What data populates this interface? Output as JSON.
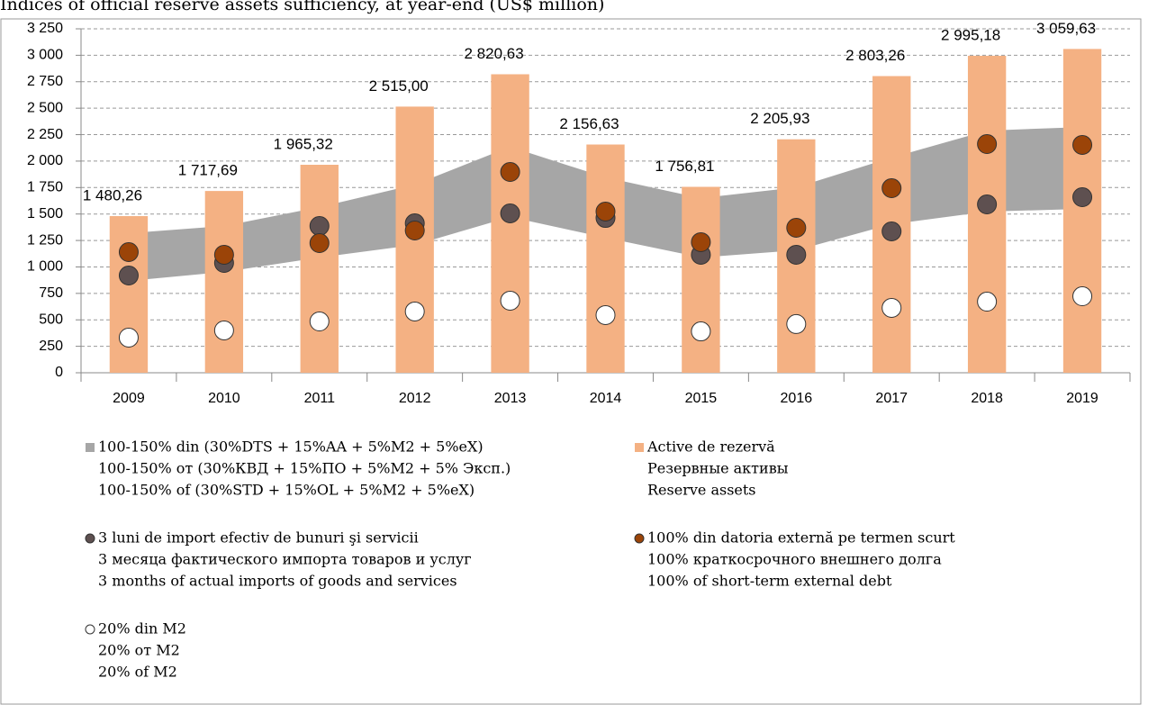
{
  "chart_data": {
    "type": "combo",
    "title": "Indices of official reserve assets sufficiency, at year-end (US$ million)",
    "categories": [
      "2009",
      "2010",
      "2011",
      "2012",
      "2013",
      "2014",
      "2015",
      "2016",
      "2017",
      "2018",
      "2019"
    ],
    "ylim": [
      0,
      3250
    ],
    "yticks": [
      0,
      250,
      500,
      750,
      {
        "value": 1000,
        "label": "1 000"
      },
      {
        "value": 1250,
        "label": "1 250"
      },
      {
        "value": 1500,
        "label": "1 500"
      },
      {
        "value": 1750,
        "label": "1 750"
      },
      {
        "value": 2000,
        "label": "2 000"
      },
      {
        "value": 2250,
        "label": "2 250"
      },
      {
        "value": 2500,
        "label": "2 500"
      },
      {
        "value": 2750,
        "label": "2 750"
      },
      {
        "value": 3000,
        "label": "3 000"
      },
      {
        "value": 3250,
        "label": "3 250"
      }
    ],
    "grid": true,
    "series": [
      {
        "name": [
          "100-150% din (30%DTS + 15%AA + 5%M2 + 5%eX)",
          "100-150% от (30%КВД  + 15%ПО + 5%M2 + 5% Эксп.)",
          "100-150% of (30%STD + 15%OL + 5%M2 + 5%eX)"
        ],
        "type": "band",
        "color": "#a6a6a6",
        "lower": [
          868,
          953,
          1089,
          1208,
          1472,
          1276,
          1089,
          1157,
          1404,
          1523,
          1548
        ],
        "upper": [
          1319,
          1387,
          1565,
          1778,
          2135,
          1846,
          1650,
          1752,
          2033,
          2288,
          2322
        ]
      },
      {
        "name": [
          "Active de rezervă",
          "Резервные активы",
          "Reserve assets"
        ],
        "type": "bar",
        "color": "#f4b183",
        "values": [
          1480.26,
          1717.69,
          1965.32,
          2515.0,
          2820.63,
          2156.63,
          1756.81,
          2205.93,
          2803.26,
          2995.18,
          3059.63
        ],
        "value_labels": [
          "1 480,26",
          "1 717,69",
          "1 965,32",
          "2 515,00",
          "2 820,63",
          "2 156,63",
          "1 756,81",
          "2 205,93",
          "2 803,26",
          "2 995,18",
          "3 059,63"
        ]
      },
      {
        "name": [
          "3 luni de import efectiv de bunuri şi servicii",
          "3 месяца фактического импорта товаров и услуг",
          "3 months of actual imports of goods and services"
        ],
        "type": "dot",
        "color": "#5e5050",
        "values": [
          919,
          1038,
          1387,
          1412,
          1506,
          1463,
          1115,
          1115,
          1336,
          1591,
          1659
        ]
      },
      {
        "name": [
          "100% din datoria externă pe termen scurt",
          "100% краткосрочного внешнего долга",
          "100% of short-term external debt"
        ],
        "type": "dot",
        "color": "#9b4408",
        "values": [
          1140,
          1115,
          1225,
          1344,
          1897,
          1523,
          1234,
          1370,
          1744,
          2161,
          2153
        ]
      },
      {
        "name": [
          "20% din M2",
          "20% от M2",
          "20% of M2"
        ],
        "type": "dot",
        "color": "#ffffff",
        "values": [
          332,
          400,
          485,
          579,
          681,
          545,
          391,
          460,
          613,
          672,
          723
        ]
      }
    ]
  }
}
